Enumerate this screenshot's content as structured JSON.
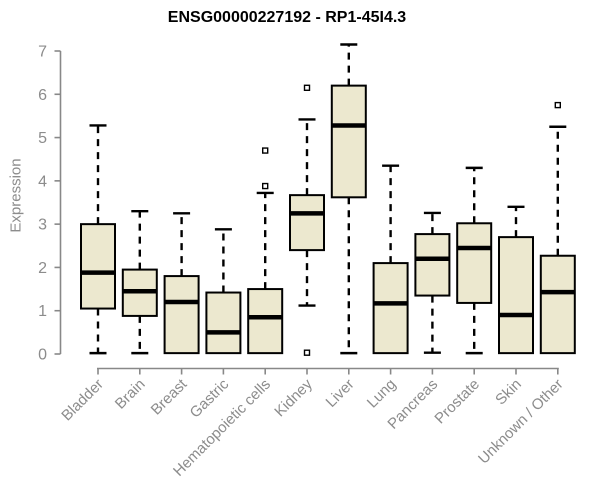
{
  "chart_data": {
    "type": "boxplot",
    "title": "ENSG00000227192 - RP1-45I4.3",
    "xlabel": "",
    "ylabel": "Expression",
    "ylim": [
      0,
      7
    ],
    "yticks": [
      0,
      1,
      2,
      3,
      4,
      5,
      6,
      7
    ],
    "grid": false,
    "legend": "none",
    "categories": [
      "Bladder",
      "Brain",
      "Breast",
      "Gastric",
      "Hematopoietic cells",
      "Kidney",
      "Liver",
      "Lung",
      "Pancreas",
      "Prostate",
      "Skin",
      "Unknown / Other"
    ],
    "series": [
      {
        "name": "Bladder",
        "whisker_low": 0.02,
        "q1": 1.05,
        "median": 1.88,
        "q3": 3.0,
        "whisker_high": 5.28,
        "outliers": []
      },
      {
        "name": "Brain",
        "whisker_low": 0.02,
        "q1": 0.88,
        "median": 1.45,
        "q3": 1.95,
        "whisker_high": 3.3,
        "outliers": []
      },
      {
        "name": "Breast",
        "whisker_low": 0.02,
        "q1": 0.02,
        "median": 1.2,
        "q3": 1.8,
        "whisker_high": 3.25,
        "outliers": []
      },
      {
        "name": "Gastric",
        "whisker_low": 0.02,
        "q1": 0.02,
        "median": 0.5,
        "q3": 1.42,
        "whisker_high": 2.88,
        "outliers": []
      },
      {
        "name": "Hematopoietic cells",
        "whisker_low": 0.02,
        "q1": 0.02,
        "median": 0.85,
        "q3": 1.5,
        "whisker_high": 3.72,
        "outliers": [
          3.88,
          4.7
        ]
      },
      {
        "name": "Kidney",
        "whisker_low": 1.12,
        "q1": 2.4,
        "median": 3.25,
        "q3": 3.67,
        "whisker_high": 5.42,
        "outliers": [
          6.15,
          0.03
        ]
      },
      {
        "name": "Liver",
        "whisker_low": 0.02,
        "q1": 3.62,
        "median": 5.28,
        "q3": 6.2,
        "whisker_high": 7.15,
        "outliers": []
      },
      {
        "name": "Lung",
        "whisker_low": 0.02,
        "q1": 0.02,
        "median": 1.17,
        "q3": 2.1,
        "whisker_high": 4.35,
        "outliers": []
      },
      {
        "name": "Pancreas",
        "whisker_low": 0.03,
        "q1": 1.35,
        "median": 2.2,
        "q3": 2.77,
        "whisker_high": 3.26,
        "outliers": []
      },
      {
        "name": "Prostate",
        "whisker_low": 0.02,
        "q1": 1.18,
        "median": 2.45,
        "q3": 3.02,
        "whisker_high": 4.3,
        "outliers": []
      },
      {
        "name": "Skin",
        "whisker_low": 0.02,
        "q1": 0.02,
        "median": 0.9,
        "q3": 2.7,
        "whisker_high": 3.4,
        "outliers": []
      },
      {
        "name": "Unknown / Other",
        "whisker_low": 0.02,
        "q1": 0.02,
        "median": 1.43,
        "q3": 2.27,
        "whisker_high": 5.25,
        "outliers": [
          5.75
        ]
      }
    ],
    "colors": {
      "box_fill": "#ECE8CF",
      "box_border": "#000000",
      "median": "#000000",
      "whisker": "#000000",
      "outlier_fill": "#ffffff",
      "axis": "#888888",
      "tick_label": "#8c8c8c",
      "title": "#000000"
    }
  }
}
